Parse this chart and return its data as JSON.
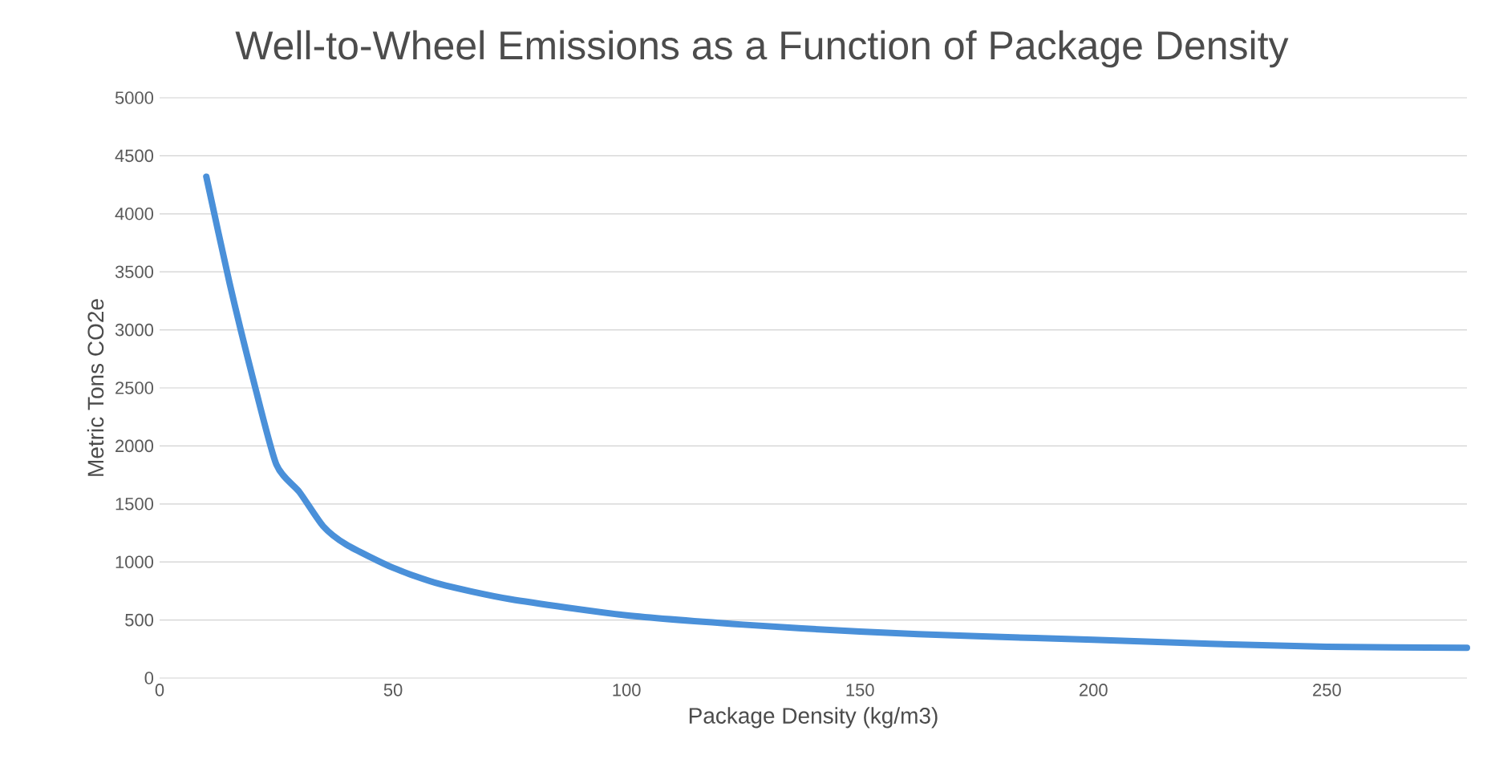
{
  "chart_data": {
    "type": "line",
    "title": "Well-to-Wheel Emissions as a Function of Package Density",
    "xlabel": "Package Density (kg/m3)",
    "ylabel": "Metric Tons CO2e",
    "x": [
      10,
      15,
      20,
      25,
      30,
      35,
      40,
      50,
      60,
      75,
      100,
      125,
      150,
      175,
      200,
      225,
      250,
      280
    ],
    "series": [
      {
        "color": "#4a90d9",
        "values": [
          4320,
          3400,
          2580,
          1840,
          1600,
          1310,
          1150,
          950,
          810,
          680,
          540,
          460,
          400,
          360,
          330,
          295,
          270,
          260
        ]
      }
    ],
    "xlim": [
      0,
      280
    ],
    "ylim": [
      0,
      5000
    ],
    "xticks": [
      0,
      50,
      100,
      150,
      200,
      250
    ],
    "yticks": [
      0,
      500,
      1000,
      1500,
      2000,
      2500,
      3000,
      3500,
      4000,
      4500,
      5000
    ],
    "grid": "y",
    "marker": "none",
    "line_style": "solid"
  }
}
